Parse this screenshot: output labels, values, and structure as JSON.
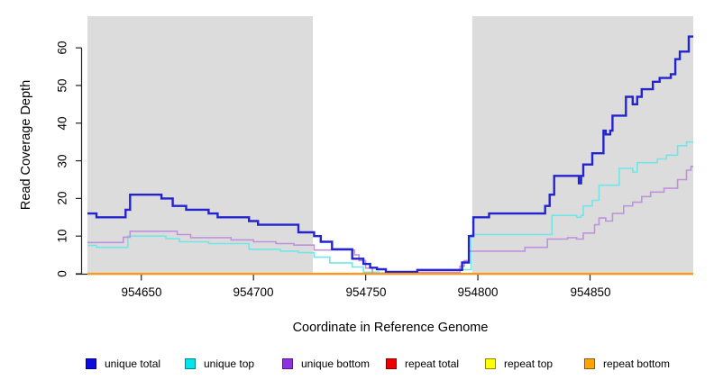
{
  "figure": {
    "y_axis": {
      "label": "Read Coverage Depth",
      "ticks": [
        "0",
        "10",
        "20",
        "30",
        "40",
        "50",
        "60"
      ]
    },
    "x_axis": {
      "label": "Coordinate in Reference Genome",
      "ticks": [
        "954650",
        "954700",
        "954750",
        "954800",
        "954850"
      ]
    },
    "legend": [
      {
        "label": "unique total",
        "fill": "#0b0be0",
        "border": "#000085"
      },
      {
        "label": "unique top",
        "fill": "#00e5ee",
        "border": "#00868b"
      },
      {
        "label": "unique bottom",
        "fill": "#9130e0",
        "border": "#551a8b"
      },
      {
        "label": "repeat total",
        "fill": "#ee0000",
        "border": "#800000"
      },
      {
        "label": "repeat top",
        "fill": "#ffff00",
        "border": "#8b8b00"
      },
      {
        "label": "repeat bottom",
        "fill": "#ffa500",
        "border": "#8b5a2b"
      }
    ]
  },
  "chart_data": {
    "type": "line",
    "line_style": "step-after",
    "title": "",
    "xlabel": "Coordinate in Reference Genome",
    "ylabel": "Read Coverage Depth",
    "x_range": [
      954626,
      954896
    ],
    "y_range": [
      0,
      68.4
    ],
    "x_ticks": [
      954650,
      954700,
      954750,
      954800,
      954850
    ],
    "y_ticks": [
      0,
      10,
      20,
      30,
      40,
      50,
      60
    ],
    "grid": false,
    "legend_position": "bottom",
    "shaded_regions": [
      {
        "x": [
          954626,
          954726.5
        ],
        "color": "#dcdcdc"
      },
      {
        "x": [
          954726.5,
          954797.5
        ],
        "color": "#ffffff"
      },
      {
        "x": [
          954797.5,
          954896
        ],
        "color": "#dcdcdc"
      }
    ],
    "series": [
      {
        "name": "repeat total",
        "color": "#cc1414",
        "width": 1.5,
        "points": [
          [
            954626,
            0
          ],
          [
            954896,
            0
          ]
        ]
      },
      {
        "name": "repeat top",
        "color": "#f5e614",
        "width": 1.5,
        "points": [
          [
            954626,
            0
          ],
          [
            954896,
            0
          ]
        ]
      },
      {
        "name": "unique top",
        "color": "#72e6e6",
        "width": 1.6,
        "points": [
          [
            954626,
            7.5
          ],
          [
            954630,
            7
          ],
          [
            954644,
            10
          ],
          [
            954661,
            9.3
          ],
          [
            954667,
            8.5
          ],
          [
            954680,
            8
          ],
          [
            954698,
            6.5
          ],
          [
            954712,
            6
          ],
          [
            954720,
            5.6
          ],
          [
            954727,
            4.4
          ],
          [
            954734,
            2.9
          ],
          [
            954744,
            1.8
          ],
          [
            954749,
            0.4
          ],
          [
            954756,
            0.2
          ],
          [
            954773,
            1.1
          ],
          [
            954797,
            10.4
          ],
          [
            954833,
            15.5
          ],
          [
            954844,
            15
          ],
          [
            954846,
            15.5
          ],
          [
            954847,
            18
          ],
          [
            954851,
            19.5
          ],
          [
            954854,
            23.5
          ],
          [
            954863,
            28
          ],
          [
            954869,
            27
          ],
          [
            954871,
            29.5
          ],
          [
            954880,
            30.5
          ],
          [
            954884,
            31.5
          ],
          [
            954889,
            34
          ],
          [
            954893,
            35
          ],
          [
            954896,
            35
          ]
        ]
      },
      {
        "name": "unique bottom",
        "color": "#be92dc",
        "width": 1.6,
        "points": [
          [
            954626,
            8.3
          ],
          [
            954642,
            9.7
          ],
          [
            954645,
            11.3
          ],
          [
            954666,
            10.4
          ],
          [
            954672,
            9.6
          ],
          [
            954690,
            9
          ],
          [
            954700,
            8.5
          ],
          [
            954710,
            8
          ],
          [
            954718,
            7.6
          ],
          [
            954727,
            6.3
          ],
          [
            954745,
            5
          ],
          [
            954747,
            3.5
          ],
          [
            954750,
            1.5
          ],
          [
            954753,
            0
          ],
          [
            954772,
            0.4
          ],
          [
            954792,
            2
          ],
          [
            954794,
            3.5
          ],
          [
            954796,
            6
          ],
          [
            954821,
            7
          ],
          [
            954831,
            9.2
          ],
          [
            954840,
            9.6
          ],
          [
            954844,
            9.2
          ],
          [
            954847,
            10.8
          ],
          [
            954852,
            13
          ],
          [
            954854,
            14.8
          ],
          [
            954857,
            14
          ],
          [
            954860,
            16
          ],
          [
            954865,
            18
          ],
          [
            954869,
            19
          ],
          [
            954873,
            20.5
          ],
          [
            954877,
            21.7
          ],
          [
            954883,
            22.7
          ],
          [
            954889,
            25
          ],
          [
            954893,
            27.5
          ],
          [
            954895,
            28.5
          ],
          [
            954896,
            28.5
          ]
        ]
      },
      {
        "name": "unique total",
        "color": "#2424ce",
        "width": 2.4,
        "points": [
          [
            954626,
            16
          ],
          [
            954630,
            15
          ],
          [
            954643,
            17
          ],
          [
            954645,
            21
          ],
          [
            954659,
            20
          ],
          [
            954664,
            18
          ],
          [
            954670,
            17
          ],
          [
            954680,
            16
          ],
          [
            954684,
            15
          ],
          [
            954698,
            14
          ],
          [
            954702,
            13
          ],
          [
            954720,
            11
          ],
          [
            954727,
            10
          ],
          [
            954730,
            8.5
          ],
          [
            954735,
            6.5
          ],
          [
            954744,
            4
          ],
          [
            954749,
            2.6
          ],
          [
            954752,
            1.6
          ],
          [
            954755,
            1.2
          ],
          [
            954759,
            0.5
          ],
          [
            954773,
            1
          ],
          [
            954793,
            3
          ],
          [
            954796,
            10
          ],
          [
            954798,
            15
          ],
          [
            954805,
            16
          ],
          [
            954830,
            18
          ],
          [
            954832,
            21
          ],
          [
            954834,
            26
          ],
          [
            954845,
            24
          ],
          [
            954846,
            26
          ],
          [
            954847,
            29
          ],
          [
            954851,
            32
          ],
          [
            954856,
            38
          ],
          [
            954857,
            37
          ],
          [
            954859,
            38
          ],
          [
            954860,
            42
          ],
          [
            954866,
            47
          ],
          [
            954869,
            45
          ],
          [
            954871,
            47
          ],
          [
            954873,
            49
          ],
          [
            954878,
            51
          ],
          [
            954881,
            52
          ],
          [
            954886,
            53
          ],
          [
            954888,
            57
          ],
          [
            954890,
            59
          ],
          [
            954894,
            63
          ],
          [
            954896,
            63
          ]
        ]
      },
      {
        "name": "repeat bottom",
        "color": "#ff9814",
        "width": 2.2,
        "points": [
          [
            954626,
            0
          ],
          [
            954896,
            0
          ]
        ]
      }
    ]
  }
}
